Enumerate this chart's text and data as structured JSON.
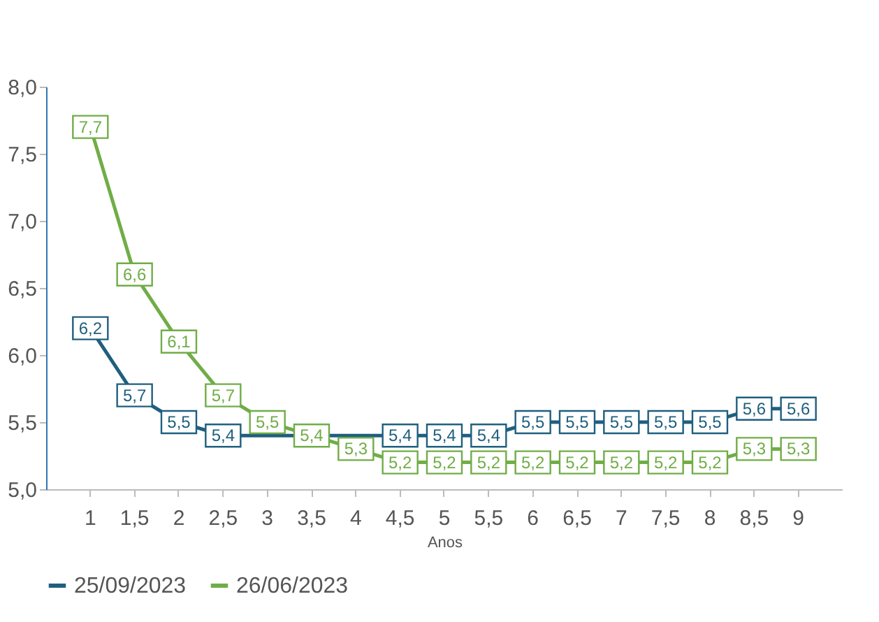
{
  "chart_data": {
    "type": "line",
    "xlabel": "Anos",
    "categories": [
      "1",
      "1,5",
      "2",
      "2,5",
      "3",
      "3,5",
      "4",
      "4,5",
      "5",
      "5,5",
      "6",
      "6,5",
      "7",
      "7,5",
      "8",
      "8,5",
      "9"
    ],
    "series": [
      {
        "name": "25/09/2023",
        "color": "#1f5f7f",
        "values": [
          6.2,
          5.7,
          5.5,
          5.4,
          5.4,
          5.4,
          5.4,
          5.4,
          5.4,
          5.4,
          5.5,
          5.5,
          5.5,
          5.5,
          5.5,
          5.6,
          5.6
        ],
        "value_labels": [
          "6,2",
          "5,7",
          "5,5",
          "5,4",
          null,
          null,
          null,
          "5,4",
          "5,4",
          "5,4",
          "5,5",
          "5,5",
          "5,5",
          "5,5",
          "5,5",
          "5,6",
          "5,6"
        ]
      },
      {
        "name": "26/06/2023",
        "color": "#70ad47",
        "values": [
          7.7,
          6.6,
          6.1,
          5.7,
          5.5,
          5.4,
          5.3,
          5.2,
          5.2,
          5.2,
          5.2,
          5.2,
          5.2,
          5.2,
          5.2,
          5.3,
          5.3
        ],
        "value_labels": [
          "7,7",
          "6,6",
          "6,1",
          "5,7",
          "5,5",
          "5,4",
          "5,3",
          "5,2",
          "5,2",
          "5,2",
          "5,2",
          "5,2",
          "5,2",
          "5,2",
          "5,2",
          "5,3",
          "5,3"
        ]
      }
    ],
    "ylim": [
      5.0,
      8.0
    ],
    "yticks": [
      {
        "value": 5.0,
        "label": "5,0"
      },
      {
        "value": 5.5,
        "label": "5,5"
      },
      {
        "value": 6.0,
        "label": "6,0"
      },
      {
        "value": 6.5,
        "label": "6,5"
      },
      {
        "value": 7.0,
        "label": "7,0"
      },
      {
        "value": 7.5,
        "label": "7,5"
      },
      {
        "value": 8.0,
        "label": "8,0"
      }
    ],
    "grid": false,
    "legend": "bottom",
    "marker": "square",
    "line_style": "solid"
  }
}
